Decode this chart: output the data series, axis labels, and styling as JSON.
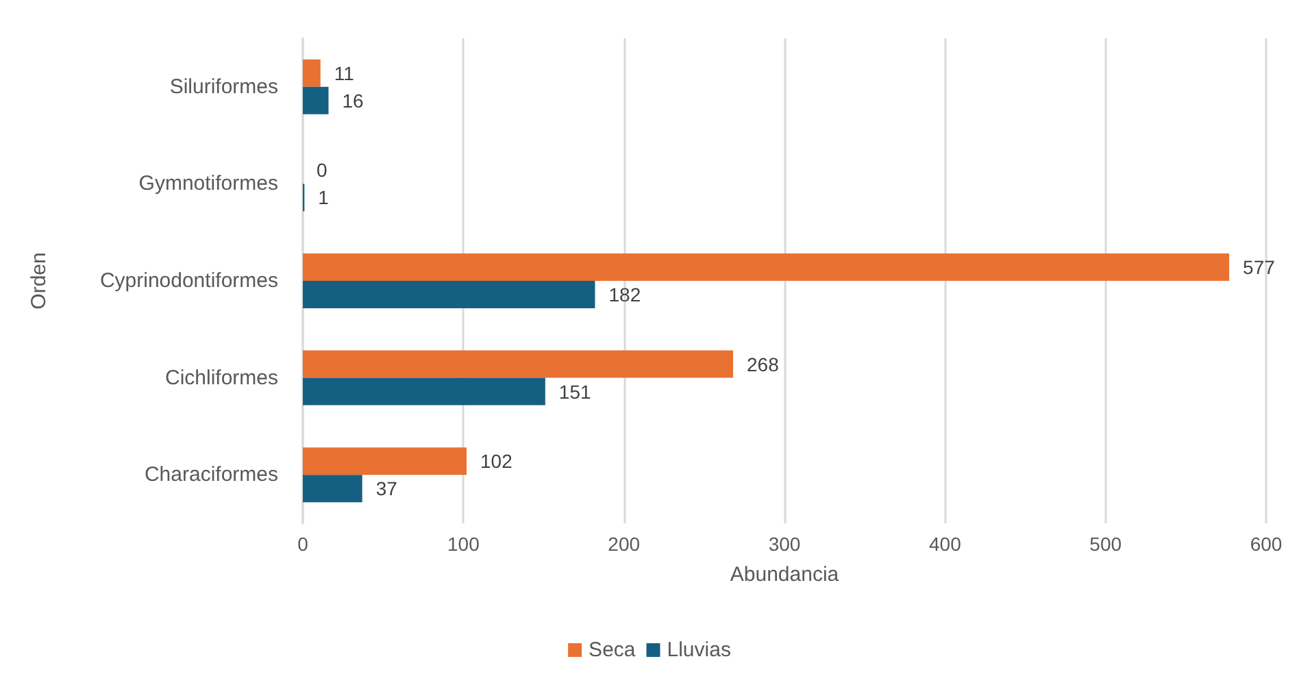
{
  "chart_data": {
    "type": "bar",
    "orientation": "horizontal",
    "xlabel": "Abundancia",
    "ylabel": "Orden",
    "categories": [
      "Siluriformes",
      "Gymnotiformes",
      "Cyprinodontiformes",
      "Cichliformes",
      "Characiformes"
    ],
    "series": [
      {
        "name": "Seca",
        "color": "#e97132",
        "values": [
          11,
          0,
          577,
          268,
          102
        ]
      },
      {
        "name": "Lluvias",
        "color": "#156082",
        "values": [
          16,
          1,
          182,
          151,
          37
        ]
      }
    ],
    "xlim": [
      0,
      600
    ],
    "xticks": [
      0,
      100,
      200,
      300,
      400,
      500,
      600
    ],
    "grid": "x",
    "legend": "bottom",
    "data_labels": true
  }
}
